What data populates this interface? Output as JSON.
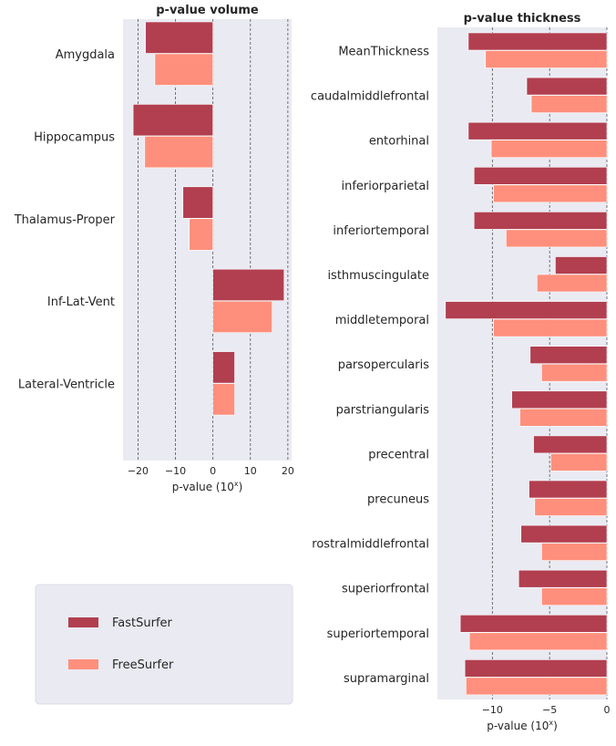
{
  "colors": {
    "fastsurfer": "#b13f50",
    "freesurfer": "#fe8f7c",
    "panel_bg": "#eaeaf2"
  },
  "legend": {
    "items": [
      "FastSurfer",
      "FreeSurfer"
    ]
  },
  "chart_data": [
    {
      "type": "bar",
      "orientation": "horizontal",
      "title": "p-value volume",
      "xlabel": "p-value (10",
      "xlabel_sup": "x",
      "xlabel_end": ")",
      "xlim": [
        -24,
        21
      ],
      "xticks": [
        -20,
        -10,
        0,
        10,
        20
      ],
      "xtick_labels": [
        "−20",
        "−10",
        "0",
        "10",
        "20"
      ],
      "grid": "vertical dashed",
      "categories": [
        "Amygdala",
        "Hippocampus",
        "Thalamus-Proper",
        "Inf-Lat-Vent",
        "Lateral-Ventricle"
      ],
      "series": [
        {
          "name": "FastSurfer",
          "values": [
            -18,
            -21.3,
            -8,
            19,
            5.8
          ]
        },
        {
          "name": "FreeSurfer",
          "values": [
            -15.5,
            -18.2,
            -6.3,
            15.8,
            5.8
          ]
        }
      ]
    },
    {
      "type": "bar",
      "orientation": "horizontal",
      "title": "p-value thickness",
      "xlabel": "p-value (10",
      "xlabel_sup": "x",
      "xlabel_end": ")",
      "xlim": [
        -14.8,
        0
      ],
      "xticks": [
        -10,
        -5,
        0
      ],
      "xtick_labels": [
        "−10",
        "−5",
        "0"
      ],
      "grid": "vertical dashed",
      "categories": [
        "MeanThickness",
        "caudalmiddlefrontal",
        "entorhinal",
        "inferiorparietal",
        "inferiortemporal",
        "isthmuscingulate",
        "middletemporal",
        "parsopercularis",
        "parstriangularis",
        "precentral",
        "precuneus",
        "rostralmiddlefrontal",
        "superiorfrontal",
        "superiortemporal",
        "supramarginal"
      ],
      "series": [
        {
          "name": "FastSurfer",
          "values": [
            -12.1,
            -7.0,
            -12.1,
            -11.6,
            -11.6,
            -4.5,
            -14.1,
            -6.7,
            -8.3,
            -6.4,
            -6.8,
            -7.5,
            -7.7,
            -12.8,
            -12.4
          ]
        },
        {
          "name": "FreeSurfer",
          "values": [
            -10.6,
            -6.6,
            -10.1,
            -9.9,
            -8.8,
            -6.1,
            -9.9,
            -5.7,
            -7.6,
            -4.9,
            -6.3,
            -5.7,
            -5.7,
            -12.0,
            -12.3
          ]
        }
      ]
    }
  ]
}
